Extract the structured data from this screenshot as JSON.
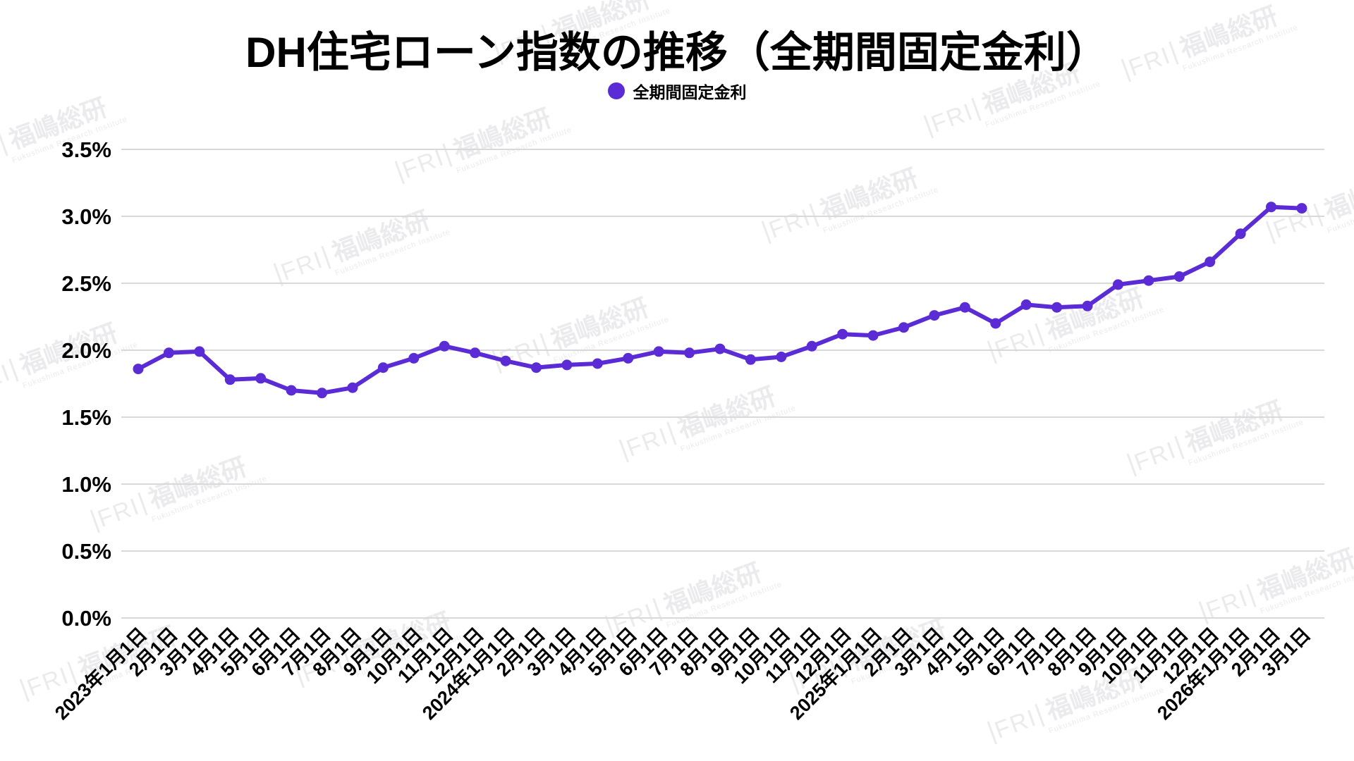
{
  "page": {
    "title": "DH住宅ローン指数の推移（全期間固定金利）",
    "legend": {
      "label": "全期間固定金利",
      "marker_color": "#5b2bd5"
    },
    "watermark": {
      "logo": "FRI",
      "name": "福嶋総研",
      "subtext": "Fukushima Research Institute"
    }
  },
  "chart_data": {
    "type": "line",
    "title": "DH住宅ローン指数の推移（全期間固定金利）",
    "xlabel": "",
    "ylabel": "",
    "ylim": [
      0.0,
      3.5
    ],
    "y_tick_step": 0.5,
    "y_tick_labels": [
      "0.0%",
      "0.5%",
      "1.0%",
      "1.5%",
      "2.0%",
      "2.5%",
      "3.0%",
      "3.5%"
    ],
    "grid": true,
    "legend_position": "top",
    "line_color": "#5b2bd5",
    "grid_color": "#d9d9d9",
    "categories": [
      "2023年1月1日",
      "2月1日",
      "3月1日",
      "4月1日",
      "5月1日",
      "6月1日",
      "7月1日",
      "8月1日",
      "9月1日",
      "10月1日",
      "11月1日",
      "12月1日",
      "2024年1月1日",
      "2月1日",
      "3月1日",
      "4月1日",
      "5月1日",
      "6月1日",
      "7月1日",
      "8月1日",
      "9月1日",
      "10月1日",
      "11月1日",
      "12月1日",
      "2025年1月1日",
      "2月1日",
      "3月1日",
      "4月1日",
      "5月1日",
      "6月1日",
      "7月1日",
      "8月1日",
      "9月1日",
      "10月1日",
      "11月1日",
      "12月1日",
      "2026年1月1日",
      "2月1日",
      "3月1日"
    ],
    "series": [
      {
        "name": "全期間固定金利",
        "color": "#5b2bd5",
        "values": [
          1.86,
          1.98,
          1.99,
          1.78,
          1.79,
          1.7,
          1.68,
          1.72,
          1.87,
          1.94,
          2.03,
          1.98,
          1.92,
          1.87,
          1.89,
          1.9,
          1.94,
          1.99,
          1.98,
          2.01,
          1.93,
          1.95,
          2.03,
          2.12,
          2.11,
          2.17,
          2.26,
          2.32,
          2.2,
          2.34,
          2.32,
          2.33,
          2.49,
          2.52,
          2.55,
          2.66,
          2.87,
          3.07,
          3.06
        ]
      }
    ]
  }
}
